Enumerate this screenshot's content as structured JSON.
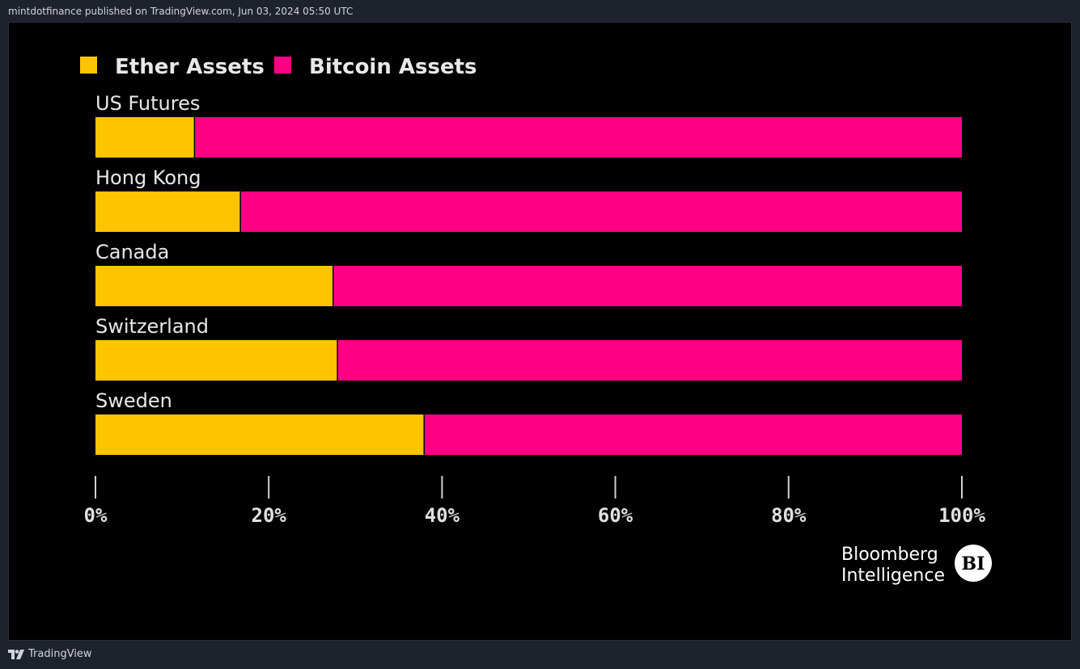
{
  "header": {
    "published_text": "mintdotfinance published on TradingView.com, Jun 03, 2024 05:50 UTC"
  },
  "footer": {
    "brand": "TradingView"
  },
  "branding": {
    "line1": "Bloomberg",
    "line2": "Intelligence",
    "badge": "BI"
  },
  "colors": {
    "ether": "#ffc400",
    "bitcoin": "#ff0085",
    "background": "#000000"
  },
  "chart_data": {
    "type": "bar",
    "orientation": "horizontal",
    "stacked": true,
    "categories": [
      "US Futures",
      "Hong Kong",
      "Canada",
      "Switzerland",
      "Sweden"
    ],
    "series": [
      {
        "name": "Ether Assets",
        "values": [
          11.5,
          16.8,
          27.5,
          28,
          38
        ]
      },
      {
        "name": "Bitcoin Assets",
        "values": [
          88.5,
          83.2,
          72.5,
          72,
          62
        ]
      }
    ],
    "xticks": [
      "0%",
      "20%",
      "40%",
      "60%",
      "80%",
      "100%"
    ],
    "xtick_values": [
      0,
      20,
      40,
      60,
      80,
      100
    ],
    "xlim": [
      0,
      100
    ],
    "legend_position": "top-left",
    "grid": false
  }
}
